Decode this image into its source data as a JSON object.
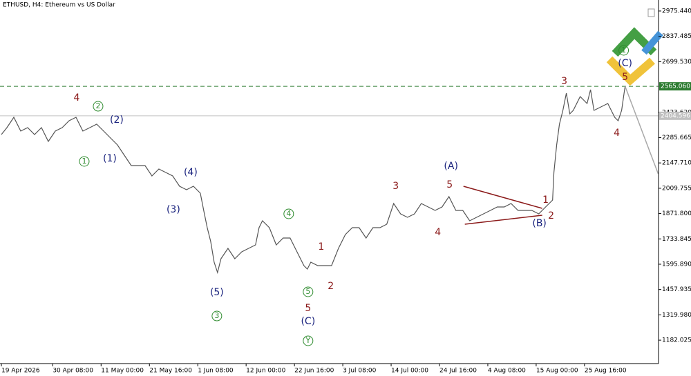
{
  "chart_data": {
    "type": "line",
    "title": "ETHUSD, H4:  Ethereum vs US Dollar",
    "xlim": [
      0,
      145
    ],
    "ylim": [
      1054.5,
      3035.4
    ],
    "xticks": [
      {
        "value": 0,
        "label": "19 Apr 2026"
      },
      {
        "value": 11.333,
        "label": "30 Apr 08:00"
      },
      {
        "value": 22,
        "label": "11 May 00:00"
      },
      {
        "value": 32.667,
        "label": "21 May 16:00"
      },
      {
        "value": 43.333,
        "label": "1 Jun 08:00"
      },
      {
        "value": 54,
        "label": "12 Jun 00:00"
      },
      {
        "value": 64.667,
        "label": "22 Jun 16:00"
      },
      {
        "value": 75.333,
        "label": "3 Jul 08:00"
      },
      {
        "value": 86,
        "label": "14 Jul 00:00"
      },
      {
        "value": 96.667,
        "label": "24 Jul 16:00"
      },
      {
        "value": 107.333,
        "label": "4 Aug 08:00"
      },
      {
        "value": 118,
        "label": "15 Aug 00:00"
      },
      {
        "value": 128.667,
        "label": "25 Aug 16:00"
      }
    ],
    "yticks": [
      {
        "value": 2975.44,
        "label": "2975.440"
      },
      {
        "value": 2837.485,
        "label": "2837.485"
      },
      {
        "value": 2699.53,
        "label": "2699.530"
      },
      {
        "value": 2423.62,
        "label": "2423.620"
      },
      {
        "value": 2285.665,
        "label": "2285.665"
      },
      {
        "value": 2147.71,
        "label": "2147.710"
      },
      {
        "value": 2009.755,
        "label": "2009.755"
      },
      {
        "value": 1871.8,
        "label": "1871.800"
      },
      {
        "value": 1733.845,
        "label": "1733.845"
      },
      {
        "value": 1595.89,
        "label": "1595.890"
      },
      {
        "value": 1457.935,
        "label": "1457.935"
      },
      {
        "value": 1319.98,
        "label": "1319.980"
      },
      {
        "value": 1182.025,
        "label": "1182.025"
      }
    ],
    "series": [
      {
        "name": "ETHUSD",
        "color": "#555555",
        "x": [
          0,
          1.22,
          2.74,
          4.27,
          5.79,
          7.32,
          8.84,
          10.36,
          11.89,
          13.41,
          14.94,
          16.46,
          17.98,
          19.51,
          21.03,
          22.56,
          24.08,
          25.6,
          27.13,
          28.65,
          30.18,
          31.7,
          33.22,
          34.75,
          36.27,
          37.8,
          39.32,
          40.84,
          42.37,
          43.89,
          44.65,
          45.42,
          46.18,
          46.94,
          47.7,
          48.46,
          49.99,
          51.51,
          53.04,
          54.56,
          56.08,
          56.85,
          57.61,
          59.13,
          60.66,
          62.18,
          63.7,
          65.23,
          66.75,
          67.51,
          68.28,
          69.8,
          71.32,
          72.85,
          74.37,
          75.9,
          77.42,
          78.94,
          80.47,
          81.99,
          83.52,
          85.04,
          86.56,
          88.09,
          89.61,
          91.14,
          92.66,
          94.18,
          95.71,
          97.23,
          98.76,
          100.28,
          101.8,
          103.33,
          104.85,
          106.38,
          107.9,
          109.42,
          110.95,
          112.47,
          114.0,
          115.52,
          117.04,
          118.57,
          120.09,
          121.62,
          121.92,
          122.53,
          123.14,
          123.9,
          124.66,
          125.43,
          126.19,
          127.71,
          129.24,
          130.0,
          130.76,
          132.28,
          133.81,
          135.33,
          136.09,
          136.86,
          137.62
        ],
        "values": [
          2302.4,
          2340.0,
          2396.4,
          2321.2,
          2340.0,
          2302.4,
          2340.0,
          2264.9,
          2321.2,
          2340.0,
          2377.6,
          2396.4,
          2321.2,
          2340.0,
          2358.8,
          2321.2,
          2283.6,
          2246.1,
          2189.6,
          2133.3,
          2133.3,
          2133.3,
          2076.9,
          2114.5,
          2095.7,
          2076.9,
          2020.5,
          2001.7,
          2020.5,
          1982.9,
          1889.0,
          1795.0,
          1719.8,
          1607.1,
          1550.6,
          1625.9,
          1682.2,
          1625.9,
          1663.4,
          1682.2,
          1701.0,
          1795.0,
          1832.6,
          1795.0,
          1701.0,
          1738.6,
          1738.6,
          1663.4,
          1588.2,
          1569.5,
          1607.1,
          1588.2,
          1588.2,
          1588.2,
          1682.2,
          1757.4,
          1795.0,
          1795.0,
          1738.6,
          1795.0,
          1795.0,
          1813.8,
          1926.5,
          1870.2,
          1851.4,
          1870.2,
          1926.5,
          1907.7,
          1889.0,
          1907.7,
          1964.2,
          1889.0,
          1889.0,
          1832.6,
          1851.4,
          1870.2,
          1889.0,
          1907.7,
          1907.7,
          1926.5,
          1889.0,
          1889.0,
          1889.0,
          1870.2,
          1907.7,
          1945.3,
          2095.7,
          2246.1,
          2358.8,
          2434.0,
          2527.9,
          2415.2,
          2434.0,
          2509.1,
          2471.6,
          2546.8,
          2434.0,
          2452.8,
          2471.6,
          2396.4,
          2377.6,
          2434.0,
          2565.6
        ]
      }
    ],
    "levels": [
      {
        "value": 2565.06,
        "label": "2565.060",
        "color": "#2e7d32"
      },
      {
        "value": 2404.596,
        "label": "2404.596",
        "color": "#c0c0c0"
      }
    ],
    "lines": [
      {
        "x": [
          101.96,
          119.33
        ],
        "y": [
          2020.5,
          1900.2
        ],
        "color": "#8b1a1a"
      },
      {
        "x": [
          102.26,
          119.33
        ],
        "y": [
          1813.8,
          1862.6
        ],
        "color": "#8b1a1a"
      },
      {
        "x": [
          137.62,
          144.93
        ],
        "y": [
          2565.6,
          2088.2
        ],
        "color": "#a8a8a8"
      }
    ],
    "annotations": [
      {
        "text": "4",
        "x": 16.61,
        "y": 2501.7,
        "color": "#8b1a1a"
      },
      {
        "text": "2",
        "x": 21.34,
        "y": 2456.5,
        "color": "#2e8b2e",
        "circled": true
      },
      {
        "text": "(2)",
        "x": 25.45,
        "y": 2381.4,
        "color": "#1a237e"
      },
      {
        "text": "1",
        "x": 18.29,
        "y": 2155.9,
        "color": "#2e8b2e",
        "circled": true
      },
      {
        "text": "(1)",
        "x": 23.93,
        "y": 2170.9,
        "color": "#1a237e"
      },
      {
        "text": "(4)",
        "x": 41.76,
        "y": 2095.7,
        "color": "#1a237e"
      },
      {
        "text": "(3)",
        "x": 37.95,
        "y": 1892.7,
        "color": "#1a237e"
      },
      {
        "text": "(5)",
        "x": 47.55,
        "y": 1441.7,
        "color": "#1a237e"
      },
      {
        "text": "3",
        "x": 47.55,
        "y": 1313.8,
        "color": "#2e8b2e",
        "circled": true
      },
      {
        "text": "4",
        "x": 63.4,
        "y": 1870.2,
        "color": "#2e8b2e",
        "circled": true
      },
      {
        "text": "1",
        "x": 70.56,
        "y": 1689.7,
        "color": "#8b1a1a"
      },
      {
        "text": "2",
        "x": 72.69,
        "y": 1475.5,
        "color": "#8b1a1a"
      },
      {
        "text": "5",
        "x": 67.67,
        "y": 1445.4,
        "color": "#2e8b2e",
        "circled": true
      },
      {
        "text": "5",
        "x": 67.67,
        "y": 1355.2,
        "color": "#8b1a1a"
      },
      {
        "text": "(C)",
        "x": 67.67,
        "y": 1283.8,
        "color": "#1a237e"
      },
      {
        "text": "Y",
        "x": 67.67,
        "y": 1178.6,
        "color": "#2e8b2e",
        "circled": true
      },
      {
        "text": "3",
        "x": 87.02,
        "y": 2020.5,
        "color": "#8b1a1a"
      },
      {
        "text": "(A)",
        "x": 99.21,
        "y": 2129.5,
        "color": "#1a237e"
      },
      {
        "text": "5",
        "x": 98.91,
        "y": 2028.0,
        "color": "#8b1a1a"
      },
      {
        "text": "4",
        "x": 96.32,
        "y": 1768.7,
        "color": "#8b1a1a"
      },
      {
        "text": "1",
        "x": 120.09,
        "y": 1945.3,
        "color": "#8b1a1a"
      },
      {
        "text": "2",
        "x": 121.31,
        "y": 1858.9,
        "color": "#8b1a1a"
      },
      {
        "text": "(B)",
        "x": 118.72,
        "y": 1817.5,
        "color": "#1a237e"
      },
      {
        "text": "3",
        "x": 124.21,
        "y": 2591.9,
        "color": "#8b1a1a"
      },
      {
        "text": "4",
        "x": 135.79,
        "y": 2310.0,
        "color": "#8b1a1a"
      },
      {
        "text": "1",
        "x": 137.31,
        "y": 2761.0,
        "color": "#2e8b2e",
        "circled": true
      },
      {
        "text": "(C)",
        "x": 137.62,
        "y": 2689.6,
        "color": "#1a237e"
      },
      {
        "text": "5",
        "x": 137.62,
        "y": 2614.4,
        "color": "#8b1a1a"
      }
    ]
  }
}
